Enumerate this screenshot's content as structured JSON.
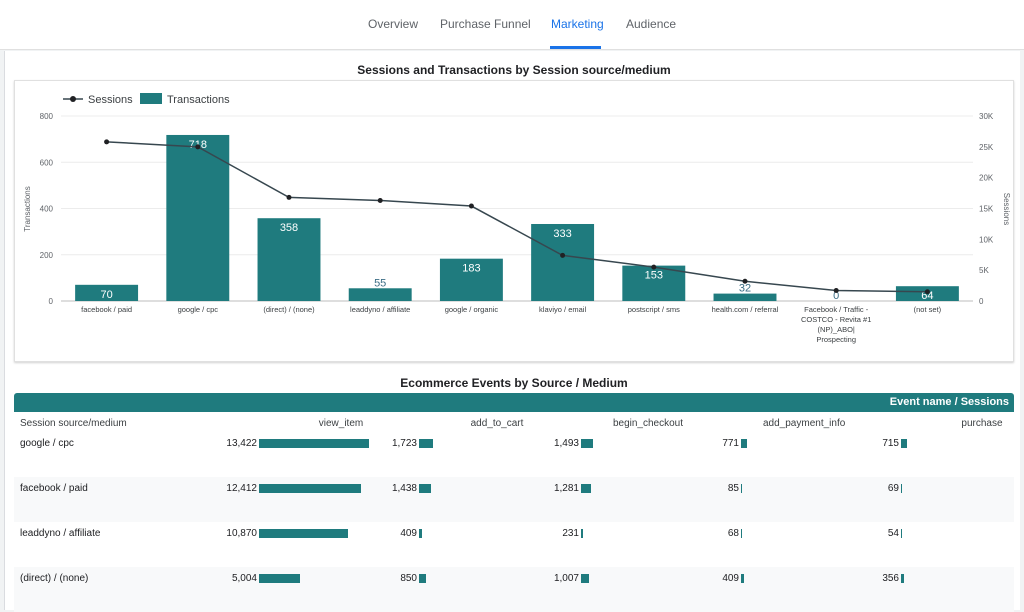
{
  "nav": {
    "tabs": [
      {
        "label": "Overview"
      },
      {
        "label": "Purchase Funnel"
      },
      {
        "label": "Marketing"
      },
      {
        "label": "Audience"
      }
    ],
    "active_tab": "Marketing",
    "accent_color": "#1a73e8"
  },
  "chart_title": "Sessions and Transactions by Session source/medium",
  "chart_data": {
    "type": "bar",
    "categories": [
      "facebook / paid",
      "google / cpc",
      "(direct) / (none)",
      "leaddyno / affiliate",
      "google / organic",
      "klaviyo / email",
      "postscript / sms",
      "health.com / referral",
      "Facebook / Traffic - COSTCO - Revita #1 (NP)_ABO| Prospecting",
      "(not set)"
    ],
    "category_lines": [
      [
        "facebook / paid"
      ],
      [
        "google / cpc"
      ],
      [
        "(direct) / (none)"
      ],
      [
        "leaddyno / affiliate"
      ],
      [
        "google / organic"
      ],
      [
        "klaviyo / email"
      ],
      [
        "postscript / sms"
      ],
      [
        "health.com / referral"
      ],
      [
        "Facebook / Traffic -",
        "COSTCO - Revita #1",
        "(NP)_ABO|",
        "Prospecting"
      ],
      [
        "(not set)"
      ]
    ],
    "series": [
      {
        "name": "Transactions",
        "type": "bar",
        "axis": "left",
        "color": "#1f7b7e",
        "values": [
          70,
          718,
          358,
          55,
          183,
          333,
          153,
          32,
          0,
          64
        ]
      },
      {
        "name": "Sessions",
        "type": "line",
        "axis": "right",
        "color": "#37474f",
        "values": [
          25800,
          25000,
          16800,
          16300,
          15400,
          7400,
          5500,
          3200,
          1700,
          1500
        ]
      }
    ],
    "bar_labels": [
      "70",
      "718",
      "358",
      "55",
      "183",
      "333",
      "153",
      "32",
      "0",
      "64"
    ],
    "y_left": {
      "label": "Transactions",
      "ticks": [
        0,
        200,
        400,
        600,
        800
      ],
      "tick_labels": [
        "0",
        "200",
        "400",
        "600",
        "800"
      ],
      "range": [
        0,
        800
      ]
    },
    "y_right": {
      "label": "Sessions",
      "ticks": [
        0,
        5000,
        10000,
        15000,
        20000,
        25000,
        30000
      ],
      "tick_labels": [
        "0",
        "5K",
        "10K",
        "15K",
        "20K",
        "25K",
        "30K"
      ],
      "range": [
        0,
        30000
      ]
    },
    "legend_position": "top-left",
    "grid": true
  },
  "table": {
    "title": "Ecommerce Events by Source / Medium",
    "header_label": "Event name / Sessions",
    "row_dim_label": "Session source/medium",
    "columns": [
      "view_item",
      "add_to_cart",
      "begin_checkout",
      "add_payment_info",
      "purchase"
    ],
    "rows": [
      {
        "label": "google / cpc",
        "values": [
          13422,
          1723,
          1493,
          771,
          715
        ],
        "display": [
          "13,422",
          "1,723",
          "1,493",
          "771",
          "715"
        ]
      },
      {
        "label": "facebook / paid",
        "values": [
          12412,
          1438,
          1281,
          85,
          69
        ],
        "display": [
          "12,412",
          "1,438",
          "1,281",
          "85",
          "69"
        ]
      },
      {
        "label": "leaddyno / affiliate",
        "values": [
          10870,
          409,
          231,
          68,
          54
        ],
        "display": [
          "10,870",
          "409",
          "231",
          "68",
          "54"
        ]
      },
      {
        "label": "(direct) / (none)",
        "values": [
          5004,
          850,
          1007,
          409,
          356
        ],
        "display": [
          "5,004",
          "850",
          "1,007",
          "409",
          "356"
        ]
      }
    ],
    "bar_color": "#1f7b7e",
    "bar_max_value": 13422
  }
}
